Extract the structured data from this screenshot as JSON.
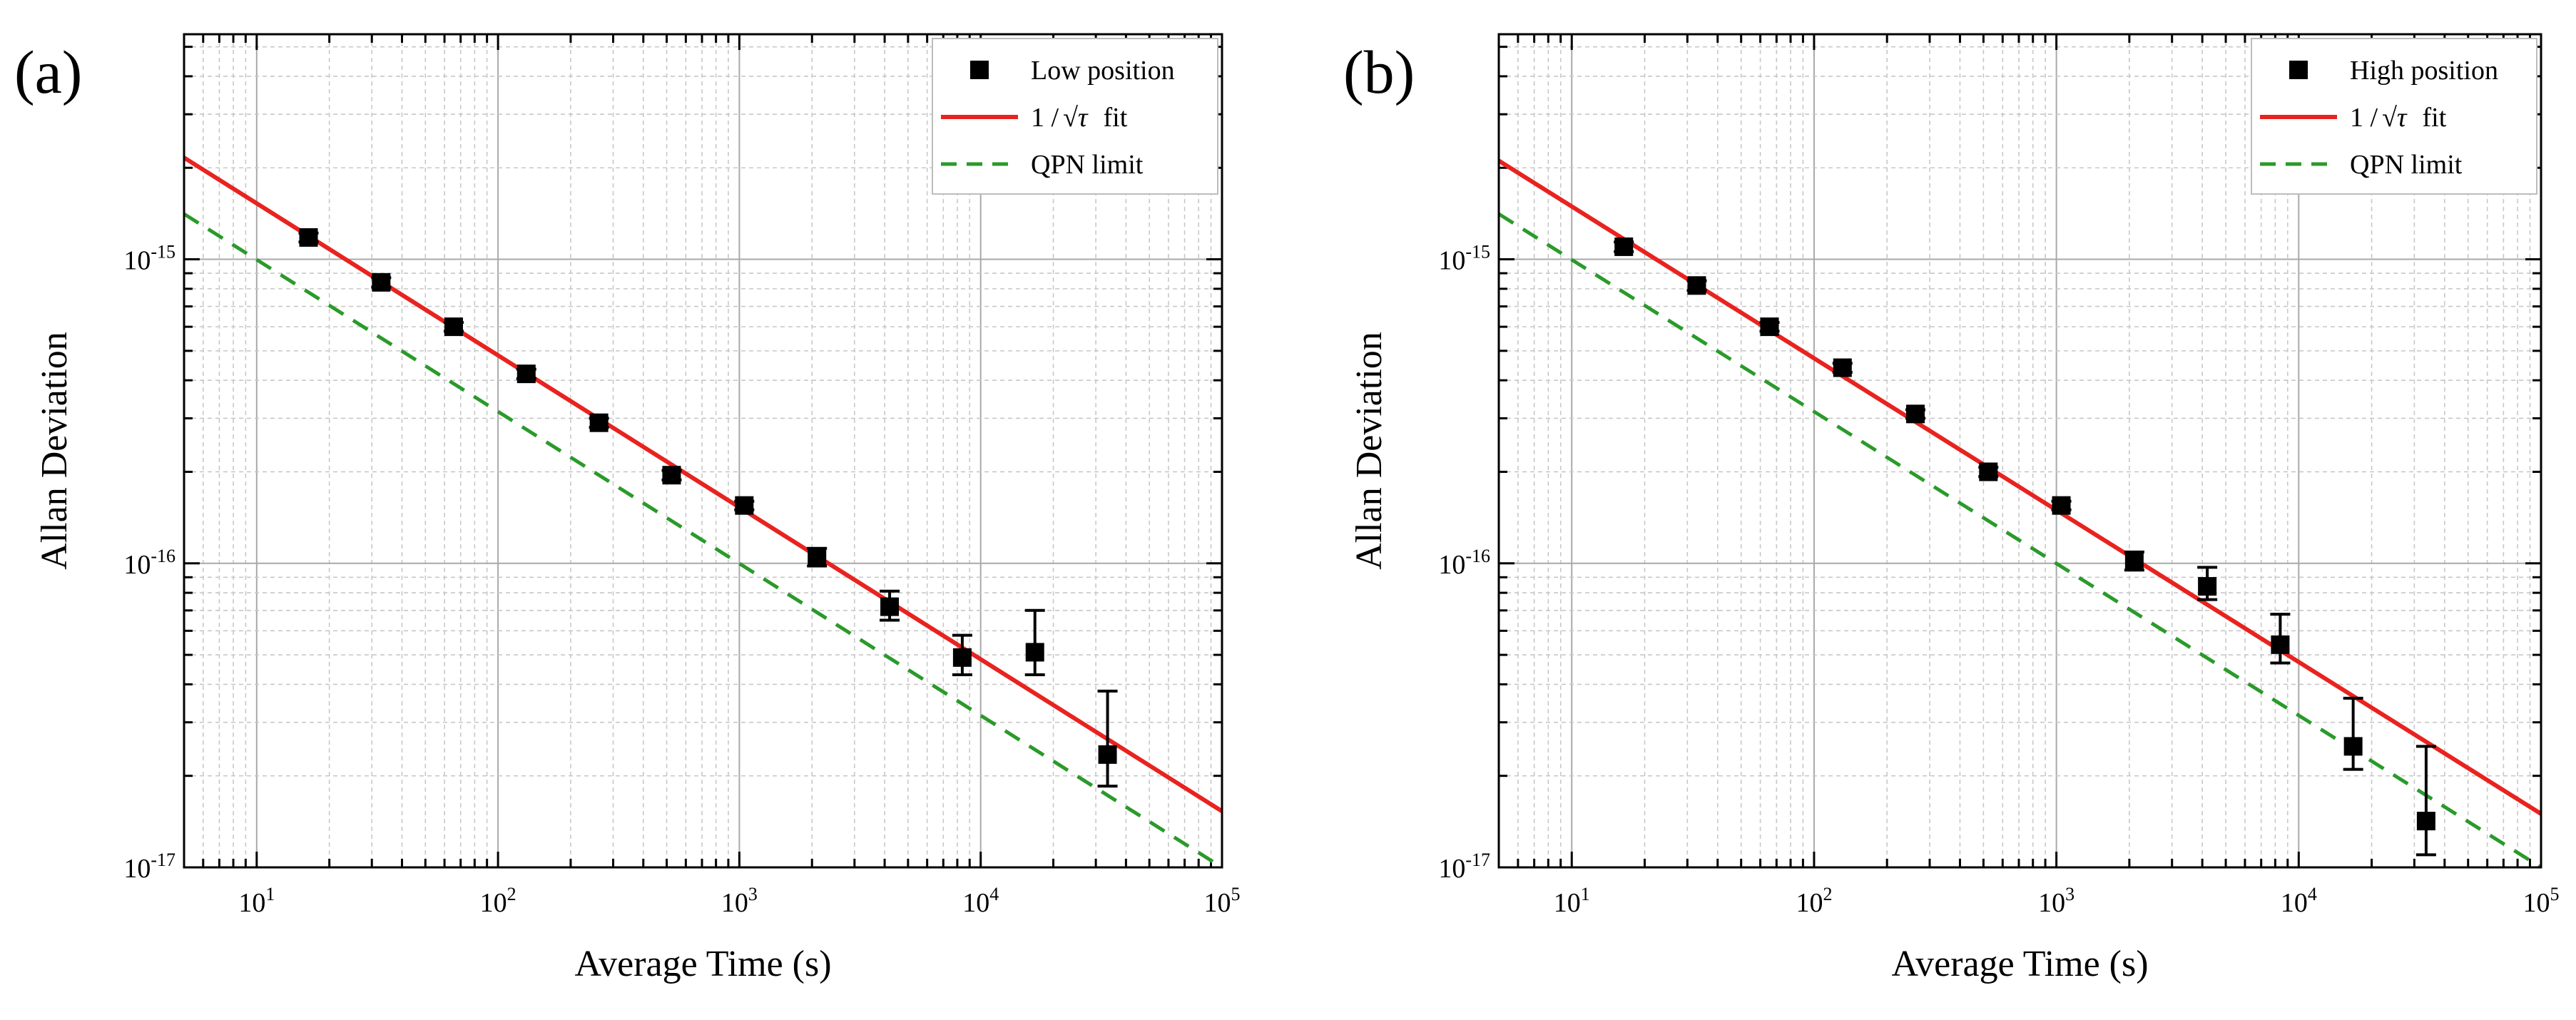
{
  "chart_data": [
    {
      "type": "scatter",
      "panel_label": "(a)",
      "xlabel": "Average Time (s)",
      "ylabel": "Allan Deviation",
      "xscale": "log",
      "yscale": "log",
      "xlim": [
        5,
        100000
      ],
      "ylim": [
        1e-17,
        5.5e-15
      ],
      "xticks": [
        {
          "base": "10",
          "exp": "1"
        },
        {
          "base": "10",
          "exp": "2"
        },
        {
          "base": "10",
          "exp": "3"
        },
        {
          "base": "10",
          "exp": "4"
        },
        {
          "base": "10",
          "exp": "5"
        }
      ],
      "yticks": [
        {
          "base": "10",
          "exp": "-17"
        },
        {
          "base": "10",
          "exp": "-16"
        },
        {
          "base": "10",
          "exp": "-15"
        }
      ],
      "grid": true,
      "legend_position": "top-right",
      "legend": [
        {
          "label": "Low position",
          "style": "marker",
          "color": "#000000"
        },
        {
          "label_prefix": "1 /",
          "label_radical": "√τ",
          "label_suffix": "fit",
          "style": "line",
          "color": "#e8231f"
        },
        {
          "label": "QPN limit",
          "style": "dashed",
          "color": "#2a9a2a"
        }
      ],
      "series": [
        {
          "name": "Low position",
          "kind": "scatter",
          "color": "#000000",
          "points": [
            {
              "x": 16.4,
              "y": 1.18e-15,
              "lo": 1.14e-15,
              "hi": 1.22e-15
            },
            {
              "x": 32.8,
              "y": 8.4e-16,
              "lo": 8.1e-16,
              "hi": 8.7e-16
            },
            {
              "x": 65.5,
              "y": 6e-16,
              "lo": 5.8e-16,
              "hi": 6.2e-16
            },
            {
              "x": 131,
              "y": 4.2e-16,
              "lo": 4.05e-16,
              "hi": 4.35e-16
            },
            {
              "x": 262,
              "y": 2.9e-16,
              "lo": 2.8e-16,
              "hi": 3e-16
            },
            {
              "x": 524,
              "y": 1.95e-16,
              "lo": 1.88e-16,
              "hi": 2.02e-16
            },
            {
              "x": 1048,
              "y": 1.55e-16,
              "lo": 1.5e-16,
              "hi": 1.6e-16
            },
            {
              "x": 2097,
              "y": 1.05e-16,
              "lo": 9.8e-17,
              "hi": 1.12e-16
            },
            {
              "x": 4194,
              "y": 7.2e-17,
              "lo": 6.5e-17,
              "hi": 8.1e-17
            },
            {
              "x": 8389,
              "y": 4.9e-17,
              "lo": 4.3e-17,
              "hi": 5.8e-17
            },
            {
              "x": 16777,
              "y": 5.1e-17,
              "lo": 4.3e-17,
              "hi": 7e-17
            },
            {
              "x": 33554,
              "y": 2.35e-17,
              "lo": 1.85e-17,
              "hi": 3.8e-17
            }
          ]
        },
        {
          "name": "1 /√τ fit",
          "kind": "line",
          "color": "#e8231f",
          "x": [
            5,
            100000
          ],
          "y": [
            2.16e-15,
            1.53e-17
          ]
        },
        {
          "name": "QPN limit",
          "kind": "dashed",
          "color": "#2a9a2a",
          "x": [
            5,
            100000
          ],
          "y": [
            1.41e-15,
            1e-17
          ]
        }
      ]
    },
    {
      "type": "scatter",
      "panel_label": "(b)",
      "xlabel": "Average Time (s)",
      "ylabel": "Allan Deviation",
      "xscale": "log",
      "yscale": "log",
      "xlim": [
        5,
        100000
      ],
      "ylim": [
        1e-17,
        5.5e-15
      ],
      "xticks": [
        {
          "base": "10",
          "exp": "1"
        },
        {
          "base": "10",
          "exp": "2"
        },
        {
          "base": "10",
          "exp": "3"
        },
        {
          "base": "10",
          "exp": "4"
        },
        {
          "base": "10",
          "exp": "5"
        }
      ],
      "yticks": [
        {
          "base": "10",
          "exp": "-17"
        },
        {
          "base": "10",
          "exp": "-16"
        },
        {
          "base": "10",
          "exp": "-15"
        }
      ],
      "grid": true,
      "legend_position": "top-right",
      "legend": [
        {
          "label": "High position",
          "style": "marker",
          "color": "#000000"
        },
        {
          "label_prefix": "1 /",
          "label_radical": "√τ",
          "label_suffix": "fit",
          "style": "line",
          "color": "#e8231f"
        },
        {
          "label": "QPN limit",
          "style": "dashed",
          "color": "#2a9a2a"
        }
      ],
      "series": [
        {
          "name": "High position",
          "kind": "scatter",
          "color": "#000000",
          "points": [
            {
              "x": 16.4,
              "y": 1.1e-15,
              "lo": 1.06e-15,
              "hi": 1.14e-15
            },
            {
              "x": 32.8,
              "y": 8.2e-16,
              "lo": 7.9e-16,
              "hi": 8.5e-16
            },
            {
              "x": 65.5,
              "y": 6e-16,
              "lo": 5.8e-16,
              "hi": 6.2e-16
            },
            {
              "x": 131,
              "y": 4.4e-16,
              "lo": 4.25e-16,
              "hi": 4.55e-16
            },
            {
              "x": 262,
              "y": 3.1e-16,
              "lo": 3e-16,
              "hi": 3.2e-16
            },
            {
              "x": 524,
              "y": 2e-16,
              "lo": 1.93e-16,
              "hi": 2.07e-16
            },
            {
              "x": 1048,
              "y": 1.55e-16,
              "lo": 1.5e-16,
              "hi": 1.6e-16
            },
            {
              "x": 2097,
              "y": 1.02e-16,
              "lo": 9.5e-17,
              "hi": 1.09e-16
            },
            {
              "x": 4194,
              "y": 8.4e-17,
              "lo": 7.6e-17,
              "hi": 9.7e-17
            },
            {
              "x": 8389,
              "y": 5.4e-17,
              "lo": 4.7e-17,
              "hi": 6.8e-17
            },
            {
              "x": 16777,
              "y": 2.5e-17,
              "lo": 2.1e-17,
              "hi": 3.6e-17
            },
            {
              "x": 33554,
              "y": 1.42e-17,
              "lo": 1.1e-17,
              "hi": 2.5e-17
            }
          ]
        },
        {
          "name": "1 /√τ fit",
          "kind": "line",
          "color": "#e8231f",
          "x": [
            5,
            100000
          ],
          "y": [
            2.11e-15,
            1.5e-17
          ]
        },
        {
          "name": "QPN limit",
          "kind": "dashed",
          "color": "#2a9a2a",
          "x": [
            5,
            100000
          ],
          "y": [
            1.41e-15,
            1e-17
          ]
        }
      ]
    }
  ]
}
